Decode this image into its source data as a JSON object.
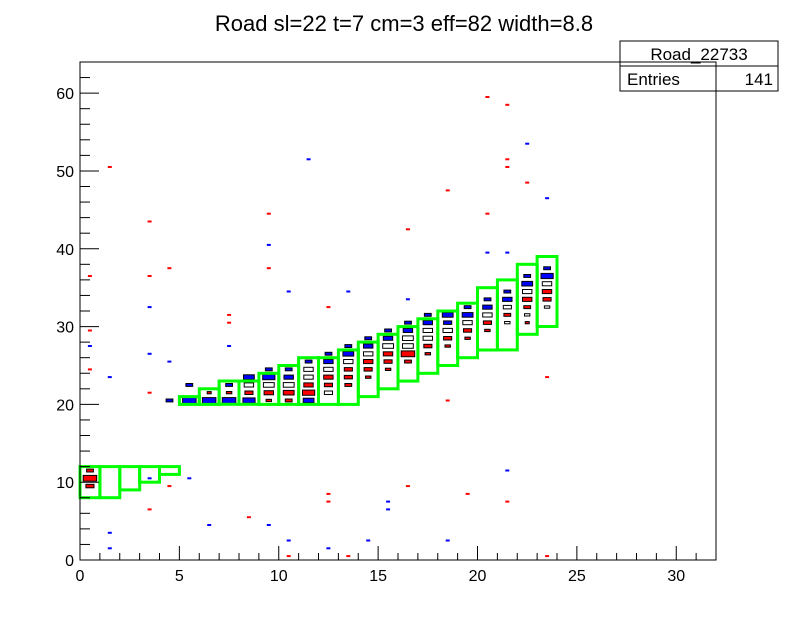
{
  "chart_data": {
    "type": "heatmap",
    "title": "Road sl=22 t=7 cm=3 eff=82 width=8.8",
    "xlabel": "",
    "ylabel": "",
    "xlim": [
      0,
      32
    ],
    "ylim": [
      0,
      64
    ],
    "x_ticks": [
      0,
      5,
      10,
      15,
      20,
      25,
      30
    ],
    "y_ticks": [
      0,
      10,
      20,
      30,
      40,
      50,
      60
    ],
    "grid": false,
    "stats_box": {
      "name": "Road_22733",
      "entries_label": "Entries",
      "entries_value": "141",
      "placement": "top-right"
    },
    "colors": {
      "red": "#ff0000",
      "blue": "#0000ff",
      "road": "#00ff00",
      "frame": "#000000"
    },
    "scatter_red": [
      [
        0.5,
        36.5
      ],
      [
        0.5,
        29.5
      ],
      [
        0.5,
        24.5
      ],
      [
        1.5,
        50.5
      ],
      [
        3.5,
        43.5
      ],
      [
        3.5,
        36.5
      ],
      [
        3.5,
        21.5
      ],
      [
        3.5,
        6.5
      ],
      [
        4.5,
        37.5
      ],
      [
        4.5,
        9.5
      ],
      [
        7.5,
        31.5
      ],
      [
        7.5,
        30.5
      ],
      [
        8.5,
        5.5
      ],
      [
        9.5,
        44.5
      ],
      [
        9.5,
        37.5
      ],
      [
        10.5,
        0.5
      ],
      [
        12.5,
        32.5
      ],
      [
        12.5,
        8.5
      ],
      [
        12.5,
        7.5
      ],
      [
        13.5,
        0.5
      ],
      [
        16.5,
        42.5
      ],
      [
        16.5,
        9.5
      ],
      [
        18.5,
        47.5
      ],
      [
        18.5,
        20.5
      ],
      [
        19.5,
        8.5
      ],
      [
        20.5,
        59.5
      ],
      [
        20.5,
        44.5
      ],
      [
        21.5,
        58.5
      ],
      [
        21.5,
        51.5
      ],
      [
        21.5,
        50.5
      ],
      [
        21.5,
        7.5
      ],
      [
        22.5,
        48.5
      ],
      [
        23.5,
        23.5
      ],
      [
        23.5,
        0.5
      ]
    ],
    "scatter_blue": [
      [
        0.5,
        27.5
      ],
      [
        1.5,
        23.5
      ],
      [
        1.5,
        3.5
      ],
      [
        1.5,
        1.5
      ],
      [
        3.5,
        32.5
      ],
      [
        3.5,
        26.5
      ],
      [
        3.5,
        10.5
      ],
      [
        4.5,
        25.5
      ],
      [
        5.5,
        10.5
      ],
      [
        6.5,
        4.5
      ],
      [
        7.5,
        27.5
      ],
      [
        9.5,
        40.5
      ],
      [
        9.5,
        4.5
      ],
      [
        10.5,
        34.5
      ],
      [
        10.5,
        2.5
      ],
      [
        11.5,
        51.5
      ],
      [
        12.5,
        1.5
      ],
      [
        13.5,
        34.5
      ],
      [
        14.5,
        2.5
      ],
      [
        15.5,
        7.5
      ],
      [
        15.5,
        6.5
      ],
      [
        16.5,
        33.5
      ],
      [
        18.5,
        2.5
      ],
      [
        20.5,
        39.5
      ],
      [
        21.5,
        39.5
      ],
      [
        21.5,
        11.5
      ],
      [
        22.5,
        53.5
      ],
      [
        23.5,
        46.5
      ]
    ],
    "cluster_cells": [
      {
        "x": 0.5,
        "y": 11.5,
        "c": "red",
        "w": 0.5
      },
      {
        "x": 0.5,
        "y": 10.5,
        "c": "red",
        "w": 1.0
      },
      {
        "x": 0.5,
        "y": 9.5,
        "c": "red",
        "w": 0.6
      },
      {
        "x": 4.5,
        "y": 20.5,
        "c": "blue",
        "w": 0.5
      },
      {
        "x": 5.5,
        "y": 22.5,
        "c": "blue",
        "w": 0.5
      },
      {
        "x": 5.5,
        "y": 20.5,
        "c": "blue",
        "w": 1.0
      },
      {
        "x": 6.5,
        "y": 20.5,
        "c": "blue",
        "w": 1.0
      },
      {
        "x": 6.5,
        "y": 21.5,
        "c": "red",
        "w": 0.3
      },
      {
        "x": 7.5,
        "y": 22.5,
        "c": "blue",
        "w": 0.5
      },
      {
        "x": 7.5,
        "y": 21.5,
        "c": "red",
        "w": 0.4
      },
      {
        "x": 7.5,
        "y": 20.5,
        "c": "blue",
        "w": 1.0
      },
      {
        "x": 8.5,
        "y": 23.5,
        "c": "blue",
        "w": 0.8
      },
      {
        "x": 8.5,
        "y": 22.5,
        "c": "white",
        "w": 0.7
      },
      {
        "x": 8.5,
        "y": 21.5,
        "c": "red",
        "w": 0.6
      },
      {
        "x": 8.5,
        "y": 20.5,
        "c": "blue",
        "w": 0.9
      },
      {
        "x": 9.5,
        "y": 24.5,
        "c": "blue",
        "w": 0.5
      },
      {
        "x": 9.5,
        "y": 23.5,
        "c": "blue",
        "w": 0.9
      },
      {
        "x": 9.5,
        "y": 22.5,
        "c": "white",
        "w": 0.8
      },
      {
        "x": 9.5,
        "y": 21.5,
        "c": "red",
        "w": 0.7
      },
      {
        "x": 9.5,
        "y": 20.5,
        "c": "red",
        "w": 0.4
      },
      {
        "x": 10.5,
        "y": 24.5,
        "c": "blue",
        "w": 0.5
      },
      {
        "x": 10.5,
        "y": 23.5,
        "c": "blue",
        "w": 0.7
      },
      {
        "x": 10.5,
        "y": 22.5,
        "c": "white",
        "w": 0.8
      },
      {
        "x": 10.5,
        "y": 21.5,
        "c": "red",
        "w": 0.8
      },
      {
        "x": 10.5,
        "y": 20.5,
        "c": "red",
        "w": 0.5
      },
      {
        "x": 11.5,
        "y": 25.5,
        "c": "blue",
        "w": 0.5
      },
      {
        "x": 11.5,
        "y": 24.5,
        "c": "white",
        "w": 0.7
      },
      {
        "x": 11.5,
        "y": 23.5,
        "c": "white",
        "w": 0.7
      },
      {
        "x": 11.5,
        "y": 22.5,
        "c": "red",
        "w": 0.7
      },
      {
        "x": 11.5,
        "y": 21.5,
        "c": "red",
        "w": 0.9
      },
      {
        "x": 11.5,
        "y": 20.5,
        "c": "blue",
        "w": 0.8
      },
      {
        "x": 12.5,
        "y": 26.5,
        "c": "blue",
        "w": 0.5
      },
      {
        "x": 12.5,
        "y": 25.5,
        "c": "blue",
        "w": 0.7
      },
      {
        "x": 12.5,
        "y": 24.5,
        "c": "white",
        "w": 0.7
      },
      {
        "x": 12.5,
        "y": 23.5,
        "c": "red",
        "w": 0.7
      },
      {
        "x": 12.5,
        "y": 22.5,
        "c": "red",
        "w": 0.6
      },
      {
        "x": 12.5,
        "y": 21.5,
        "c": "white",
        "w": 0.6
      },
      {
        "x": 13.5,
        "y": 27.5,
        "c": "blue",
        "w": 0.5
      },
      {
        "x": 13.5,
        "y": 26.5,
        "c": "blue",
        "w": 0.8
      },
      {
        "x": 13.5,
        "y": 25.5,
        "c": "white",
        "w": 0.7
      },
      {
        "x": 13.5,
        "y": 24.5,
        "c": "red",
        "w": 0.6
      },
      {
        "x": 13.5,
        "y": 23.5,
        "c": "red",
        "w": 0.6
      },
      {
        "x": 13.5,
        "y": 22.5,
        "c": "red",
        "w": 0.5
      },
      {
        "x": 14.5,
        "y": 28.5,
        "c": "blue",
        "w": 0.5
      },
      {
        "x": 14.5,
        "y": 27.5,
        "c": "blue",
        "w": 0.7
      },
      {
        "x": 14.5,
        "y": 26.5,
        "c": "white",
        "w": 0.7
      },
      {
        "x": 14.5,
        "y": 25.5,
        "c": "red",
        "w": 0.7
      },
      {
        "x": 14.5,
        "y": 24.5,
        "c": "red",
        "w": 0.6
      },
      {
        "x": 14.5,
        "y": 23.5,
        "c": "red",
        "w": 0.4
      },
      {
        "x": 15.5,
        "y": 29.5,
        "c": "blue",
        "w": 0.5
      },
      {
        "x": 15.5,
        "y": 28.5,
        "c": "blue",
        "w": 0.7
      },
      {
        "x": 15.5,
        "y": 27.5,
        "c": "white",
        "w": 0.8
      },
      {
        "x": 15.5,
        "y": 26.5,
        "c": "red",
        "w": 0.7
      },
      {
        "x": 15.5,
        "y": 25.5,
        "c": "red",
        "w": 0.6
      },
      {
        "x": 15.5,
        "y": 24.5,
        "c": "red",
        "w": 0.4
      },
      {
        "x": 16.5,
        "y": 30.5,
        "c": "blue",
        "w": 0.5
      },
      {
        "x": 16.5,
        "y": 29.5,
        "c": "blue",
        "w": 0.7
      },
      {
        "x": 16.5,
        "y": 28.5,
        "c": "white",
        "w": 0.8
      },
      {
        "x": 16.5,
        "y": 27.5,
        "c": "white",
        "w": 0.8
      },
      {
        "x": 16.5,
        "y": 26.5,
        "c": "red",
        "w": 1.0
      },
      {
        "x": 16.5,
        "y": 25.5,
        "c": "red",
        "w": 0.5
      },
      {
        "x": 17.5,
        "y": 31.5,
        "c": "blue",
        "w": 0.5
      },
      {
        "x": 17.5,
        "y": 30.5,
        "c": "blue",
        "w": 0.7
      },
      {
        "x": 17.5,
        "y": 29.5,
        "c": "white",
        "w": 0.7
      },
      {
        "x": 17.5,
        "y": 28.5,
        "c": "white",
        "w": 0.7
      },
      {
        "x": 17.5,
        "y": 27.5,
        "c": "red",
        "w": 0.6
      },
      {
        "x": 17.5,
        "y": 26.5,
        "c": "red",
        "w": 0.4
      },
      {
        "x": 18.5,
        "y": 31.5,
        "c": "blue",
        "w": 0.8
      },
      {
        "x": 18.5,
        "y": 30.5,
        "c": "blue",
        "w": 0.6
      },
      {
        "x": 18.5,
        "y": 29.5,
        "c": "white",
        "w": 0.7
      },
      {
        "x": 18.5,
        "y": 28.5,
        "c": "red",
        "w": 0.6
      },
      {
        "x": 18.5,
        "y": 27.5,
        "c": "red",
        "w": 0.4
      },
      {
        "x": 19.5,
        "y": 32.5,
        "c": "blue",
        "w": 0.5
      },
      {
        "x": 19.5,
        "y": 31.5,
        "c": "blue",
        "w": 0.8
      },
      {
        "x": 19.5,
        "y": 30.5,
        "c": "white",
        "w": 0.7
      },
      {
        "x": 19.5,
        "y": 29.5,
        "c": "red",
        "w": 0.6
      },
      {
        "x": 19.5,
        "y": 28.5,
        "c": "red",
        "w": 0.4
      },
      {
        "x": 20.5,
        "y": 33.5,
        "c": "blue",
        "w": 0.5
      },
      {
        "x": 20.5,
        "y": 32.5,
        "c": "blue",
        "w": 0.7
      },
      {
        "x": 20.5,
        "y": 31.5,
        "c": "white",
        "w": 0.7
      },
      {
        "x": 20.5,
        "y": 30.5,
        "c": "red",
        "w": 0.6
      },
      {
        "x": 20.5,
        "y": 29.5,
        "c": "red",
        "w": 0.4
      },
      {
        "x": 21.5,
        "y": 34.5,
        "c": "blue",
        "w": 0.5
      },
      {
        "x": 21.5,
        "y": 33.5,
        "c": "blue",
        "w": 0.7
      },
      {
        "x": 21.5,
        "y": 32.5,
        "c": "white",
        "w": 0.6
      },
      {
        "x": 21.5,
        "y": 31.5,
        "c": "red",
        "w": 0.5
      },
      {
        "x": 21.5,
        "y": 30.5,
        "c": "white",
        "w": 0.4
      },
      {
        "x": 22.5,
        "y": 36.5,
        "c": "blue",
        "w": 0.5
      },
      {
        "x": 22.5,
        "y": 35.5,
        "c": "blue",
        "w": 0.8
      },
      {
        "x": 22.5,
        "y": 34.5,
        "c": "white",
        "w": 0.7
      },
      {
        "x": 22.5,
        "y": 33.5,
        "c": "red",
        "w": 0.7
      },
      {
        "x": 22.5,
        "y": 32.5,
        "c": "red",
        "w": 0.5
      },
      {
        "x": 22.5,
        "y": 31.5,
        "c": "white",
        "w": 0.4
      },
      {
        "x": 22.5,
        "y": 30.5,
        "c": "red",
        "w": 0.3
      },
      {
        "x": 23.5,
        "y": 37.5,
        "c": "blue",
        "w": 0.5
      },
      {
        "x": 23.5,
        "y": 36.5,
        "c": "blue",
        "w": 0.9
      },
      {
        "x": 23.5,
        "y": 35.5,
        "c": "white",
        "w": 0.7
      },
      {
        "x": 23.5,
        "y": 34.5,
        "c": "red",
        "w": 0.7
      },
      {
        "x": 23.5,
        "y": 33.5,
        "c": "red",
        "w": 0.6
      },
      {
        "x": 23.5,
        "y": 32.5,
        "c": "white",
        "w": 0.4
      }
    ],
    "road_boxes": [
      {
        "x0": 0,
        "x1": 1,
        "y0": 8,
        "y1": 12
      },
      {
        "x0": 1,
        "x1": 2,
        "y0": 8,
        "y1": 12
      },
      {
        "x0": 2,
        "x1": 3,
        "y0": 9,
        "y1": 12
      },
      {
        "x0": 3,
        "x1": 4,
        "y0": 10,
        "y1": 12
      },
      {
        "x0": 4,
        "x1": 5,
        "y0": 11,
        "y1": 12
      },
      {
        "x0": 5,
        "x1": 6,
        "y0": 20,
        "y1": 21
      },
      {
        "x0": 6,
        "x1": 7,
        "y0": 20,
        "y1": 22
      },
      {
        "x0": 7,
        "x1": 8,
        "y0": 20,
        "y1": 23
      },
      {
        "x0": 8,
        "x1": 9,
        "y0": 20,
        "y1": 23
      },
      {
        "x0": 9,
        "x1": 10,
        "y0": 20,
        "y1": 24
      },
      {
        "x0": 10,
        "x1": 11,
        "y0": 20,
        "y1": 25
      },
      {
        "x0": 11,
        "x1": 12,
        "y0": 20,
        "y1": 26
      },
      {
        "x0": 12,
        "x1": 13,
        "y0": 20,
        "y1": 26
      },
      {
        "x0": 13,
        "x1": 14,
        "y0": 20,
        "y1": 27
      },
      {
        "x0": 14,
        "x1": 15,
        "y0": 21,
        "y1": 28
      },
      {
        "x0": 15,
        "x1": 16,
        "y0": 22,
        "y1": 29
      },
      {
        "x0": 16,
        "x1": 17,
        "y0": 23,
        "y1": 30
      },
      {
        "x0": 17,
        "x1": 18,
        "y0": 24,
        "y1": 31
      },
      {
        "x0": 18,
        "x1": 19,
        "y0": 25,
        "y1": 32
      },
      {
        "x0": 19,
        "x1": 20,
        "y0": 26,
        "y1": 33
      },
      {
        "x0": 20,
        "x1": 21,
        "y0": 27,
        "y1": 35
      },
      {
        "x0": 21,
        "x1": 22,
        "y0": 27,
        "y1": 36
      },
      {
        "x0": 22,
        "x1": 23,
        "y0": 29,
        "y1": 38
      },
      {
        "x0": 23,
        "x1": 24,
        "y0": 30,
        "y1": 39
      }
    ]
  }
}
